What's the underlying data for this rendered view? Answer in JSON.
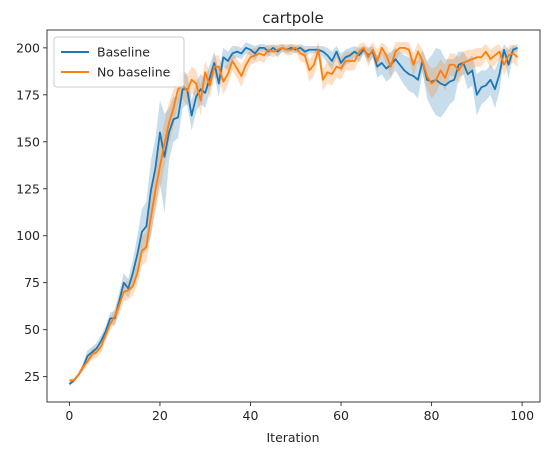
{
  "chart_data": {
    "type": "line",
    "title": "cartpole",
    "xlabel": "Iteration",
    "ylabel": "",
    "xlim": [
      -4.95,
      103.95
    ],
    "ylim": [
      11.5,
      209.5
    ],
    "x_ticks": [
      0,
      20,
      40,
      60,
      80,
      100
    ],
    "y_ticks": [
      25,
      50,
      75,
      100,
      125,
      150,
      175,
      200
    ],
    "grid": false,
    "legend_position": "top-left",
    "series": [
      {
        "name": "Baseline",
        "color": "#1f77b4",
        "x": [
          0,
          1,
          2,
          3,
          4,
          5,
          6,
          7,
          8,
          9,
          10,
          11,
          12,
          13,
          14,
          15,
          16,
          17,
          18,
          19,
          20,
          21,
          22,
          23,
          24,
          25,
          26,
          27,
          28,
          29,
          30,
          31,
          32,
          33,
          34,
          35,
          36,
          37,
          38,
          39,
          40,
          41,
          42,
          43,
          44,
          45,
          46,
          47,
          48,
          49,
          50,
          51,
          52,
          53,
          54,
          55,
          56,
          57,
          58,
          59,
          60,
          61,
          62,
          63,
          64,
          65,
          66,
          67,
          68,
          69,
          70,
          71,
          72,
          73,
          74,
          75,
          76,
          77,
          78,
          79,
          80,
          81,
          82,
          83,
          84,
          85,
          86,
          87,
          88,
          89,
          90,
          91,
          92,
          93,
          94,
          95,
          96,
          97,
          98,
          99
        ],
        "mean": [
          21,
          23,
          26,
          30,
          36,
          38,
          40,
          44,
          49,
          56,
          56,
          65,
          75,
          72,
          80,
          90,
          102,
          105,
          124,
          136,
          155,
          142,
          155,
          162,
          163,
          178,
          178,
          164,
          174,
          178,
          176,
          184,
          192,
          181,
          195,
          193,
          197,
          198,
          197,
          200,
          199,
          197,
          200,
          200,
          198,
          200,
          198,
          200,
          199,
          200,
          199,
          200,
          198,
          199,
          199,
          199,
          198,
          196,
          193,
          198,
          192,
          195,
          196,
          198,
          196,
          199,
          196,
          198,
          190,
          192,
          189,
          191,
          194,
          191,
          188,
          186,
          185,
          183,
          193,
          183,
          182,
          183,
          181,
          180,
          182,
          183,
          191,
          192,
          186,
          188,
          175,
          179,
          180,
          183,
          178,
          186,
          199,
          191,
          199,
          200
        ],
        "lower": [
          20,
          22,
          25,
          28,
          33,
          35,
          37,
          41,
          46,
          53,
          52,
          60,
          70,
          67,
          73,
          80,
          90,
          92,
          100,
          115,
          128,
          112,
          140,
          150,
          152,
          168,
          170,
          156,
          166,
          170,
          168,
          177,
          186,
          174,
          190,
          188,
          193,
          195,
          194,
          197,
          196,
          193,
          198,
          198,
          195,
          198,
          195,
          198,
          197,
          198,
          197,
          198,
          195,
          197,
          197,
          197,
          195,
          192,
          188,
          195,
          187,
          191,
          192,
          195,
          192,
          197,
          192,
          195,
          184,
          186,
          182,
          184,
          188,
          184,
          180,
          177,
          176,
          173,
          187,
          173,
          168,
          164,
          163,
          166,
          170,
          172,
          184,
          186,
          178,
          180,
          164,
          170,
          172,
          175,
          168,
          177,
          196,
          183,
          197,
          198
        ],
        "upper": [
          22,
          24,
          27,
          32,
          39,
          41,
          43,
          47,
          52,
          59,
          60,
          70,
          80,
          77,
          87,
          100,
          114,
          118,
          140,
          152,
          172,
          165,
          168,
          174,
          174,
          188,
          186,
          172,
          182,
          186,
          184,
          191,
          198,
          188,
          200,
          198,
          201,
          201,
          200,
          203,
          202,
          201,
          202,
          202,
          201,
          202,
          201,
          202,
          201,
          202,
          201,
          202,
          201,
          201,
          201,
          201,
          201,
          200,
          198,
          201,
          197,
          199,
          200,
          201,
          200,
          201,
          200,
          201,
          196,
          198,
          196,
          198,
          200,
          198,
          196,
          195,
          194,
          193,
          199,
          193,
          196,
          200,
          199,
          194,
          194,
          194,
          198,
          198,
          194,
          196,
          186,
          188,
          188,
          191,
          188,
          195,
          202,
          199,
          201,
          202
        ]
      },
      {
        "name": "No baseline",
        "color": "#ff7f0e",
        "x": [
          0,
          1,
          2,
          3,
          4,
          5,
          6,
          7,
          8,
          9,
          10,
          11,
          12,
          13,
          14,
          15,
          16,
          17,
          18,
          19,
          20,
          21,
          22,
          23,
          24,
          25,
          26,
          27,
          28,
          29,
          30,
          31,
          32,
          33,
          34,
          35,
          36,
          37,
          38,
          39,
          40,
          41,
          42,
          43,
          44,
          45,
          46,
          47,
          48,
          49,
          50,
          51,
          52,
          53,
          54,
          55,
          56,
          57,
          58,
          59,
          60,
          61,
          62,
          63,
          64,
          65,
          66,
          67,
          68,
          69,
          70,
          71,
          72,
          73,
          74,
          75,
          76,
          77,
          78,
          79,
          80,
          81,
          82,
          83,
          84,
          85,
          86,
          87,
          88,
          89,
          90,
          91,
          92,
          93,
          94,
          95,
          96,
          97,
          98,
          99
        ],
        "mean": [
          23,
          23,
          26,
          30,
          33,
          37,
          38,
          41,
          47,
          53,
          57,
          63,
          70,
          71,
          73,
          80,
          92,
          94,
          110,
          124,
          137,
          149,
          160,
          168,
          178,
          180,
          177,
          183,
          181,
          172,
          187,
          180,
          190,
          190,
          182,
          186,
          193,
          189,
          185,
          191,
          195,
          196,
          197,
          196,
          199,
          198,
          199,
          200,
          199,
          199,
          200,
          197,
          196,
          188,
          191,
          199,
          183,
          187,
          186,
          190,
          189,
          193,
          193,
          193,
          198,
          200,
          195,
          199,
          193,
          200,
          196,
          190,
          198,
          200,
          200,
          199,
          191,
          198,
          193,
          185,
          181,
          183,
          188,
          184,
          191,
          191,
          188,
          192,
          193,
          194,
          195,
          195,
          198,
          194,
          196,
          198,
          191,
          196,
          197,
          195
        ],
        "lower": [
          22,
          22,
          25,
          28,
          31,
          34,
          35,
          38,
          44,
          50,
          53,
          58,
          65,
          66,
          68,
          74,
          84,
          86,
          100,
          113,
          124,
          137,
          149,
          158,
          170,
          173,
          169,
          176,
          174,
          164,
          181,
          173,
          184,
          184,
          175,
          180,
          188,
          184,
          179,
          186,
          191,
          192,
          193,
          192,
          196,
          195,
          196,
          198,
          196,
          196,
          198,
          193,
          192,
          182,
          185,
          195,
          177,
          181,
          180,
          184,
          183,
          188,
          188,
          188,
          194,
          197,
          190,
          195,
          187,
          197,
          191,
          184,
          193,
          197,
          197,
          195,
          185,
          193,
          187,
          178,
          173,
          176,
          182,
          177,
          185,
          185,
          181,
          186,
          187,
          189,
          190,
          190,
          194,
          189,
          191,
          194,
          185,
          191,
          192,
          190
        ],
        "upper": [
          24,
          24,
          27,
          32,
          35,
          40,
          41,
          44,
          50,
          56,
          61,
          68,
          75,
          76,
          78,
          86,
          100,
          102,
          120,
          135,
          150,
          161,
          171,
          178,
          186,
          187,
          185,
          190,
          188,
          180,
          193,
          187,
          196,
          196,
          189,
          192,
          198,
          194,
          191,
          196,
          199,
          200,
          201,
          200,
          202,
          201,
          202,
          202,
          202,
          202,
          202,
          201,
          200,
          194,
          197,
          203,
          189,
          193,
          192,
          196,
          195,
          198,
          198,
          198,
          202,
          203,
          200,
          203,
          199,
          203,
          201,
          196,
          203,
          203,
          203,
          203,
          197,
          203,
          199,
          192,
          189,
          190,
          194,
          191,
          197,
          197,
          195,
          198,
          199,
          199,
          200,
          200,
          202,
          199,
          201,
          202,
          197,
          201,
          202,
          200
        ]
      }
    ]
  }
}
